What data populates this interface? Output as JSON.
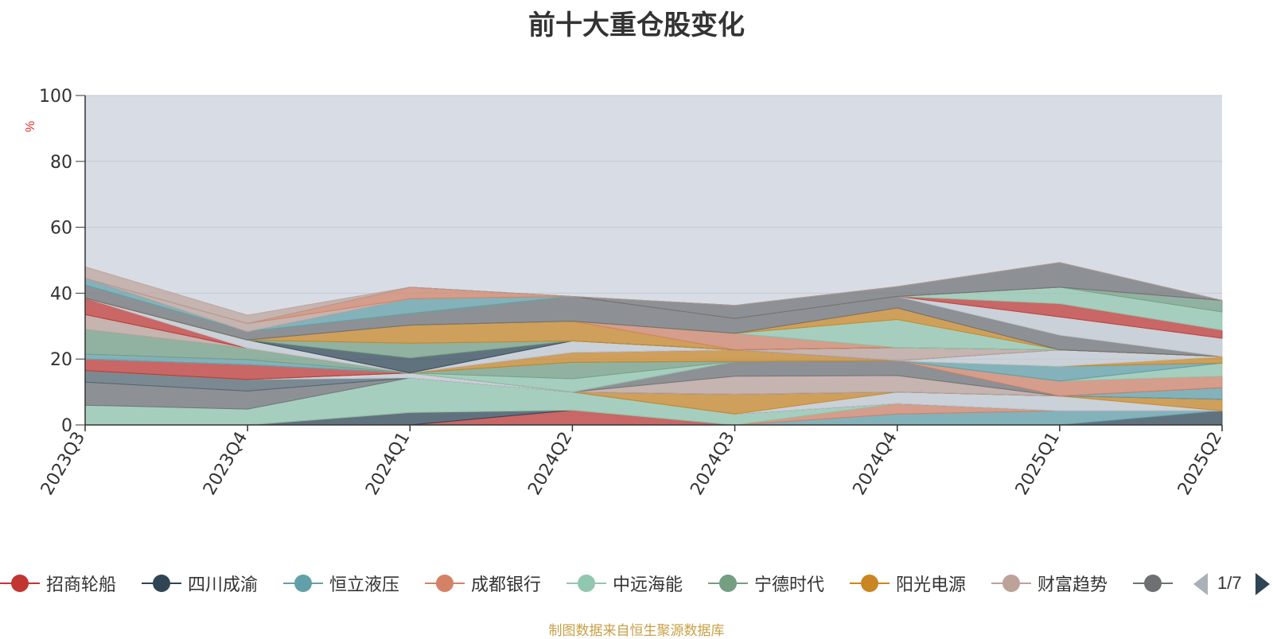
{
  "title": "前十大重仓股变化",
  "source_note": "制图数据来自恒生聚源数据库",
  "legend": {
    "items": [
      {
        "label": "招商轮船",
        "color": "#c23531"
      },
      {
        "label": "四川成渝",
        "color": "#2f4554"
      },
      {
        "label": "恒立液压",
        "color": "#61a0a8"
      },
      {
        "label": "成都银行",
        "color": "#d48265"
      },
      {
        "label": "中远海能",
        "color": "#91c7ae"
      },
      {
        "label": "宁德时代",
        "color": "#749f83"
      },
      {
        "label": "阳光电源",
        "color": "#ca8622"
      },
      {
        "label": "财富趋势",
        "color": "#bda29a"
      },
      {
        "label": "",
        "color": "#6e7074"
      }
    ],
    "page_text": "1/7",
    "prev_icon": "triangle-left-icon",
    "next_icon": "triangle-right-icon"
  },
  "chart_data": {
    "type": "area",
    "title": "前十大重仓股变化",
    "ylabel": "%",
    "ylim": [
      0,
      100
    ],
    "yticks": [
      0,
      20,
      40,
      60,
      80,
      100
    ],
    "categories": [
      "2023Q3",
      "2023Q4",
      "2024Q1",
      "2024Q2",
      "2024Q3",
      "2024Q4",
      "2025Q1",
      "2025Q2"
    ],
    "background": "#d8dde5",
    "stacked": true,
    "series": [
      {
        "name": "招商轮船",
        "color": "#c23531",
        "values": [
          0,
          0,
          0,
          4.5,
          0,
          0,
          0,
          0
        ]
      },
      {
        "name": "四川成渝",
        "color": "#2f4554",
        "values": [
          0,
          0,
          3.8,
          0,
          0,
          0,
          0,
          4.3
        ]
      },
      {
        "name": "恒立液压",
        "color": "#61a0a8",
        "values": [
          0,
          0,
          0,
          0,
          0,
          3.3,
          4.3,
          0
        ]
      },
      {
        "name": "成都银行",
        "color": "#d48265",
        "values": [
          0,
          0,
          0,
          0,
          0,
          3.2,
          0,
          0
        ]
      },
      {
        "name": "中远海能",
        "color": "#91c7ae",
        "values": [
          6.0,
          4.8,
          10.5,
          5.5,
          3.3,
          0,
          0,
          0
        ]
      },
      {
        "name": "",
        "color": "#6e7074",
        "values": [
          7.0,
          5.5,
          0,
          0,
          0,
          0,
          0,
          0
        ]
      },
      {
        "name": "",
        "color": "#546570",
        "values": [
          3.5,
          3.5,
          0,
          0,
          0,
          0,
          0,
          0
        ]
      },
      {
        "name": "",
        "color": "#c4ccd3",
        "values": [
          0,
          0,
          1.5,
          0,
          0,
          3.5,
          4.5,
          0
        ]
      },
      {
        "name": "阳光电源",
        "color": "#ca8622",
        "values": [
          0,
          0,
          0,
          0,
          6.0,
          0,
          0,
          3.5
        ]
      },
      {
        "name": "宁德时代",
        "color": "#749f83",
        "values": [
          0,
          0,
          0,
          0,
          0,
          0,
          0,
          0
        ]
      },
      {
        "name": "招商轮船",
        "color": "#c23531",
        "values": [
          3.5,
          4.5,
          0,
          0,
          0,
          0,
          0,
          0
        ]
      },
      {
        "name": "恒立液压",
        "color": "#61a0a8",
        "values": [
          0,
          0,
          0,
          0,
          0,
          0,
          0,
          3.5
        ]
      },
      {
        "name": "财富趋势",
        "color": "#bda29a",
        "values": [
          0,
          0,
          0,
          0,
          5.5,
          5.0,
          0,
          0
        ]
      },
      {
        "name": "",
        "color": "#6e7074",
        "values": [
          0,
          0,
          0,
          0,
          4.5,
          4.5,
          0,
          0
        ]
      },
      {
        "name": "成都银行",
        "color": "#d48265",
        "values": [
          0,
          0,
          0,
          0,
          0,
          0,
          4.5,
          3.5
        ]
      },
      {
        "name": "中远海能",
        "color": "#91c7ae",
        "values": [
          0,
          0,
          0,
          4.0,
          0,
          0,
          0,
          4.0
        ]
      },
      {
        "name": "宁德时代",
        "color": "#749f83",
        "values": [
          0,
          0,
          0,
          5.0,
          0,
          0,
          0,
          0
        ]
      },
      {
        "name": "恒立液压",
        "color": "#61a0a8",
        "values": [
          0,
          0,
          0,
          0,
          0,
          0,
          4.5,
          0
        ]
      },
      {
        "name": "阳光电源",
        "color": "#ca8622",
        "values": [
          0,
          0,
          0,
          3.0,
          3.5,
          0,
          0,
          2.0
        ]
      },
      {
        "name": "",
        "color": "#c4ccd3",
        "values": [
          0,
          0,
          0,
          0,
          0,
          0,
          5.0,
          0
        ]
      },
      {
        "name": "",
        "color": "#546570",
        "values": [
          0,
          0,
          0,
          0,
          0,
          0,
          0,
          0
        ]
      },
      {
        "name": "财富趋势",
        "color": "#bda29a",
        "values": [
          0,
          0,
          0,
          0,
          0,
          4.0,
          0,
          0
        ]
      },
      {
        "name": "恒立液压",
        "color": "#61a0a8",
        "values": [
          1.5,
          1.5,
          0,
          0,
          0,
          0,
          0,
          0
        ]
      },
      {
        "name": "宁德时代",
        "color": "#749f83",
        "values": [
          7.5,
          3.5,
          0,
          0,
          0,
          0,
          0,
          0
        ]
      },
      {
        "name": "财富趋势",
        "color": "#bda29a",
        "values": [
          4.5,
          0,
          0,
          0,
          0,
          0,
          0,
          0
        ]
      },
      {
        "name": "招商轮船",
        "color": "#c23531",
        "values": [
          5.0,
          0,
          0,
          0,
          0,
          0,
          0,
          0
        ]
      },
      {
        "name": "",
        "color": "#c4ccd3",
        "values": [
          0,
          2.5,
          0,
          3.5,
          0,
          0,
          0,
          0
        ]
      },
      {
        "name": "四川成渝",
        "color": "#2f4554",
        "values": [
          0,
          0,
          4.5,
          0,
          0,
          0,
          0,
          0
        ]
      },
      {
        "name": "宁德时代",
        "color": "#749f83",
        "values": [
          0,
          0,
          4.5,
          0,
          0,
          0,
          0,
          0
        ]
      },
      {
        "name": "阳光电源",
        "color": "#ca8622",
        "values": [
          0,
          0,
          5.5,
          6.0,
          0,
          0,
          0,
          0
        ]
      },
      {
        "name": "成都银行",
        "color": "#d48265",
        "values": [
          0,
          0,
          0,
          0,
          5.0,
          0,
          0,
          0
        ]
      },
      {
        "name": "恒立液压",
        "color": "#61a0a8",
        "values": [
          0,
          0,
          0,
          0,
          0,
          0,
          0,
          0
        ]
      },
      {
        "name": "中远海能",
        "color": "#91c7ae",
        "values": [
          0,
          0,
          0,
          0,
          0,
          8.5,
          0,
          0
        ]
      },
      {
        "name": "阳光电源",
        "color": "#ca8622",
        "values": [
          0,
          0,
          0,
          0,
          0,
          3.5,
          0,
          0
        ]
      },
      {
        "name": "",
        "color": "#6e7074",
        "values": [
          4.0,
          2.5,
          3.5,
          7.5,
          4.5,
          3.5,
          4.5,
          0
        ]
      },
      {
        "name": "",
        "color": "#c4ccd3",
        "values": [
          0,
          0,
          0,
          0,
          0,
          0,
          5.5,
          5.5
        ]
      },
      {
        "name": "招商轮船",
        "color": "#c23531",
        "values": [
          0,
          0,
          0,
          0,
          0,
          0,
          4.0,
          2.5
        ]
      },
      {
        "name": "中远海能",
        "color": "#91c7ae",
        "values": [
          0,
          0,
          0,
          0,
          0,
          0,
          5.0,
          5.5
        ]
      },
      {
        "name": "宁德时代",
        "color": "#749f83",
        "values": [
          0,
          0,
          0,
          0,
          0,
          0,
          0,
          3.5
        ]
      },
      {
        "name": "恒立液压",
        "color": "#61a0a8",
        "values": [
          2.0,
          0,
          4.5,
          0,
          0,
          0,
          0,
          0
        ]
      },
      {
        "name": "财富趋势",
        "color": "#bda29a",
        "values": [
          0,
          2.5,
          0,
          0,
          0,
          0,
          0,
          0
        ]
      },
      {
        "name": "成都银行",
        "color": "#d48265",
        "values": [
          0,
          0,
          3.5,
          0,
          0,
          0,
          0,
          0
        ]
      },
      {
        "name": "",
        "color": "#6e7074",
        "values": [
          0,
          0,
          0,
          0,
          4.0,
          3.0,
          7.5,
          0
        ]
      },
      {
        "name": "财富趋势",
        "color": "#bda29a",
        "values": [
          3.5,
          2.5,
          0,
          0,
          0,
          0,
          0,
          0
        ]
      }
    ]
  }
}
